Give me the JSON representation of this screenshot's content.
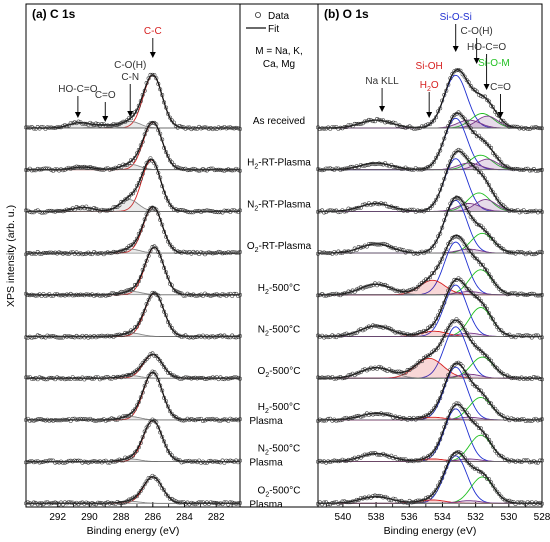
{
  "chart_data": [
    {
      "type": "line",
      "panel_label": "(a) C 1s",
      "xlabel": "Binding energy (eV)",
      "ylabel": "XPS intensity (arb. u.)",
      "xlim": [
        294,
        280.5
      ],
      "x_reversed": true,
      "xticks": [
        292,
        290,
        288,
        286,
        284,
        282
      ],
      "y_ticks_shown": false,
      "stacked_offset_spectra": true,
      "colors": {
        "data": "#333333",
        "fit": "#111111",
        "c_c": "#d62020",
        "minor": "#888888"
      },
      "peak_labels": [
        {
          "text": "C-C",
          "energy": 286.0,
          "color": "#d62020"
        },
        {
          "text": "C-O(H)",
          "energy": 287.3,
          "color": "#333333"
        },
        {
          "text": "C-N",
          "energy": 287.3,
          "color": "#333333"
        },
        {
          "text": "C=O",
          "energy": 289.0,
          "color": "#333333"
        },
        {
          "text": "HO-C=O",
          "energy": 290.6,
          "color": "#333333"
        }
      ],
      "series": [
        {
          "sample": "As received",
          "components": [
            {
              "label": "C-C",
              "center": 286.0,
              "fwhm": 1.4,
              "height": 0.8
            },
            {
              "label": "C-O(H)/C-N",
              "center": 287.4,
              "fwhm": 1.4,
              "height": 0.1
            },
            {
              "label": "C=O",
              "center": 289.0,
              "fwhm": 1.4,
              "height": 0.04
            },
            {
              "label": "HO-C=O",
              "center": 290.6,
              "fwhm": 1.6,
              "height": 0.08
            }
          ]
        },
        {
          "sample": "H2-RT-Plasma",
          "components": [
            {
              "label": "C-C",
              "center": 286.0,
              "fwhm": 1.4,
              "height": 0.72
            },
            {
              "label": "C-O(H)/C-N",
              "center": 287.4,
              "fwhm": 1.4,
              "height": 0.08
            },
            {
              "label": "HO-C=O",
              "center": 290.4,
              "fwhm": 1.6,
              "height": 0.04
            }
          ]
        },
        {
          "sample": "N2-RT-Plasma",
          "components": [
            {
              "label": "C-C",
              "center": 286.1,
              "fwhm": 1.4,
              "height": 0.78
            },
            {
              "label": "C-O(H)/C-N",
              "center": 287.5,
              "fwhm": 1.4,
              "height": 0.18
            },
            {
              "label": "HO-C=O",
              "center": 290.4,
              "fwhm": 1.6,
              "height": 0.06
            }
          ]
        },
        {
          "sample": "O2-RT-Plasma",
          "components": [
            {
              "label": "C-C",
              "center": 286.0,
              "fwhm": 1.4,
              "height": 0.7
            },
            {
              "label": "C-O(H)/C-N",
              "center": 287.4,
              "fwhm": 1.4,
              "height": 0.06
            }
          ]
        },
        {
          "sample": "H2-500°C",
          "components": [
            {
              "label": "C-C",
              "center": 285.9,
              "fwhm": 1.4,
              "height": 0.72
            },
            {
              "label": "C-O(H)/C-N",
              "center": 287.3,
              "fwhm": 1.4,
              "height": 0.05
            }
          ]
        },
        {
          "sample": "N2-500°C",
          "components": [
            {
              "label": "C-C",
              "center": 285.9,
              "fwhm": 1.4,
              "height": 0.66
            },
            {
              "label": "C-O(H)/C-N",
              "center": 287.3,
              "fwhm": 1.4,
              "height": 0.05
            }
          ]
        },
        {
          "sample": "O2-500°C",
          "components": [
            {
              "label": "C-C",
              "center": 286.0,
              "fwhm": 1.4,
              "height": 0.36
            },
            {
              "label": "C-O(H)/C-N",
              "center": 287.4,
              "fwhm": 1.4,
              "height": 0.04
            }
          ]
        },
        {
          "sample": "H2-500°C Plasma",
          "components": [
            {
              "label": "C-C",
              "center": 286.0,
              "fwhm": 1.4,
              "height": 0.72
            },
            {
              "label": "C-O(H)/C-N",
              "center": 287.4,
              "fwhm": 1.4,
              "height": 0.05
            }
          ]
        },
        {
          "sample": "N2-500°C Plasma",
          "components": [
            {
              "label": "C-C",
              "center": 286.0,
              "fwhm": 1.4,
              "height": 0.62
            },
            {
              "label": "C-O(H)/C-N",
              "center": 287.4,
              "fwhm": 1.4,
              "height": 0.04
            }
          ]
        },
        {
          "sample": "O2-500°C Plasma",
          "components": [
            {
              "label": "C-C",
              "center": 286.0,
              "fwhm": 1.4,
              "height": 0.4
            },
            {
              "label": "C-O(H)/C-N",
              "center": 287.4,
              "fwhm": 1.4,
              "height": 0.03
            }
          ]
        }
      ]
    },
    {
      "type": "line",
      "panel_label": "(b) O 1s",
      "xlabel": "Binding energy (eV)",
      "xlim": [
        541.5,
        528
      ],
      "x_reversed": true,
      "xticks": [
        540,
        538,
        536,
        534,
        532,
        530,
        528
      ],
      "y_ticks_shown": false,
      "stacked_offset_spectra": true,
      "colors": {
        "data": "#333333",
        "fit": "#111111",
        "si_o_si": "#1f2fd0",
        "si_oh": "#d62020",
        "o_m": "#22c022",
        "c_o": "#7a3a8a",
        "na_kll": "#333333"
      },
      "peak_labels": [
        {
          "text": "Na KLL",
          "energy": 538.0,
          "color": "#333333"
        },
        {
          "text": "Si-OH",
          "energy": 534.8,
          "color": "#d62020"
        },
        {
          "text": "H2O",
          "energy": 534.8,
          "color": "#d62020"
        },
        {
          "text": "Si-O-Si",
          "energy": 533.2,
          "color": "#1f2fd0"
        },
        {
          "text": "C-O(H)",
          "energy": 532.3,
          "color": "#333333"
        },
        {
          "text": "HO-C=O",
          "energy": 531.7,
          "color": "#333333"
        },
        {
          "text": "Si-O-M",
          "energy": 531.5,
          "color": "#22c022"
        },
        {
          "text": "C=O",
          "energy": 530.5,
          "color": "#333333"
        }
      ],
      "series": [
        {
          "sample": "As received",
          "components": [
            {
              "label": "Si-O-Si",
              "center": 533.2,
              "fwhm": 1.6,
              "height": 0.8
            },
            {
              "label": "Si-O-M",
              "center": 531.6,
              "fwhm": 1.6,
              "height": 0.22
            },
            {
              "label": "C-O(H)",
              "center": 532.4,
              "fwhm": 1.6,
              "height": 0.12
            },
            {
              "label": "HO-C=O",
              "center": 531.3,
              "fwhm": 1.5,
              "height": 0.18
            },
            {
              "label": "Na KLL",
              "center": 538.0,
              "fwhm": 2.2,
              "height": 0.12
            }
          ]
        },
        {
          "sample": "H2-RT-Plasma",
          "components": [
            {
              "label": "Si-O-Si",
              "center": 533.2,
              "fwhm": 1.6,
              "height": 0.78
            },
            {
              "label": "Si-O-M",
              "center": 531.7,
              "fwhm": 1.6,
              "height": 0.22
            },
            {
              "label": "C-O(H)",
              "center": 532.4,
              "fwhm": 1.6,
              "height": 0.1
            },
            {
              "label": "HO-C=O",
              "center": 531.3,
              "fwhm": 1.5,
              "height": 0.16
            },
            {
              "label": "Na KLL",
              "center": 538.0,
              "fwhm": 2.2,
              "height": 0.1
            }
          ]
        },
        {
          "sample": "N2-RT-Plasma",
          "components": [
            {
              "label": "Si-O-Si",
              "center": 533.2,
              "fwhm": 1.6,
              "height": 0.8
            },
            {
              "label": "Si-O-M",
              "center": 531.8,
              "fwhm": 1.6,
              "height": 0.28
            },
            {
              "label": "C-O(H)",
              "center": 532.4,
              "fwhm": 1.6,
              "height": 0.12
            },
            {
              "label": "HO-C=O",
              "center": 531.4,
              "fwhm": 1.5,
              "height": 0.18
            },
            {
              "label": "Na KLL",
              "center": 538.0,
              "fwhm": 2.2,
              "height": 0.12
            }
          ]
        },
        {
          "sample": "O2-RT-Plasma",
          "components": [
            {
              "label": "Si-O-Si",
              "center": 533.2,
              "fwhm": 1.6,
              "height": 0.8
            },
            {
              "label": "Si-O-M",
              "center": 531.6,
              "fwhm": 1.6,
              "height": 0.3
            },
            {
              "label": "C-O(H)",
              "center": 532.4,
              "fwhm": 1.6,
              "height": 0.06
            },
            {
              "label": "Na KLL",
              "center": 538.0,
              "fwhm": 2.2,
              "height": 0.14
            }
          ]
        },
        {
          "sample": "H2-500°C",
          "components": [
            {
              "label": "Si-O-Si",
              "center": 533.2,
              "fwhm": 1.6,
              "height": 0.8
            },
            {
              "label": "Si-O-M",
              "center": 531.7,
              "fwhm": 1.6,
              "height": 0.38
            },
            {
              "label": "Si-OH/H2O",
              "center": 534.6,
              "fwhm": 1.8,
              "height": 0.22
            },
            {
              "label": "C-O(H)",
              "center": 532.4,
              "fwhm": 1.6,
              "height": 0.05
            },
            {
              "label": "Na KLL",
              "center": 538.0,
              "fwhm": 2.2,
              "height": 0.16
            }
          ]
        },
        {
          "sample": "N2-500°C",
          "components": [
            {
              "label": "Si-O-Si",
              "center": 533.2,
              "fwhm": 1.6,
              "height": 0.78
            },
            {
              "label": "Si-O-M",
              "center": 531.7,
              "fwhm": 1.6,
              "height": 0.44
            },
            {
              "label": "Si-OH/H2O",
              "center": 534.5,
              "fwhm": 1.8,
              "height": 0.08
            },
            {
              "label": "C-O(H)",
              "center": 532.4,
              "fwhm": 1.6,
              "height": 0.05
            },
            {
              "label": "Na KLL",
              "center": 538.0,
              "fwhm": 2.2,
              "height": 0.16
            }
          ]
        },
        {
          "sample": "O2-500°C",
          "components": [
            {
              "label": "Si-O-Si",
              "center": 533.2,
              "fwhm": 1.6,
              "height": 0.78
            },
            {
              "label": "Si-O-M",
              "center": 531.6,
              "fwhm": 1.6,
              "height": 0.32
            },
            {
              "label": "Si-OH/H2O",
              "center": 534.8,
              "fwhm": 2.0,
              "height": 0.3
            },
            {
              "label": "C-O(H)",
              "center": 532.4,
              "fwhm": 1.6,
              "height": 0.06
            },
            {
              "label": "Na KLL",
              "center": 538.0,
              "fwhm": 2.2,
              "height": 0.16
            }
          ]
        },
        {
          "sample": "H2-500°C Plasma",
          "components": [
            {
              "label": "Si-O-Si",
              "center": 533.2,
              "fwhm": 1.6,
              "height": 0.8
            },
            {
              "label": "Si-O-M",
              "center": 531.7,
              "fwhm": 1.6,
              "height": 0.34
            },
            {
              "label": "Si-OH/H2O",
              "center": 534.6,
              "fwhm": 1.8,
              "height": 0.04
            },
            {
              "label": "C-O(H)",
              "center": 532.4,
              "fwhm": 1.6,
              "height": 0.04
            },
            {
              "label": "Na KLL",
              "center": 538.0,
              "fwhm": 2.2,
              "height": 0.1
            }
          ]
        },
        {
          "sample": "N2-500°C Plasma",
          "components": [
            {
              "label": "Si-O-Si",
              "center": 533.2,
              "fwhm": 1.6,
              "height": 0.8
            },
            {
              "label": "Si-O-M",
              "center": 531.7,
              "fwhm": 1.6,
              "height": 0.4
            },
            {
              "label": "Si-OH/H2O",
              "center": 534.6,
              "fwhm": 1.8,
              "height": 0.04
            },
            {
              "label": "C-O(H)",
              "center": 532.4,
              "fwhm": 1.6,
              "height": 0.04
            },
            {
              "label": "Na KLL",
              "center": 538.0,
              "fwhm": 2.2,
              "height": 0.12
            }
          ]
        },
        {
          "sample": "O2-500°C Plasma",
          "components": [
            {
              "label": "Si-O-Si",
              "center": 533.2,
              "fwhm": 1.6,
              "height": 0.72
            },
            {
              "label": "Si-O-M",
              "center": 531.6,
              "fwhm": 1.6,
              "height": 0.4
            },
            {
              "label": "Si-OH/H2O",
              "center": 534.6,
              "fwhm": 1.8,
              "height": 0.05
            },
            {
              "label": "C-O(H)",
              "center": 532.4,
              "fwhm": 1.6,
              "height": 0.04
            },
            {
              "label": "Na KLL",
              "center": 538.0,
              "fwhm": 2.2,
              "height": 0.1
            }
          ]
        }
      ]
    }
  ],
  "center_column": {
    "legend": {
      "data_label": "Data",
      "fit_label": "Fit"
    },
    "note_line1": "M = Na, K,",
    "note_line2": "Ca, Mg",
    "samples": [
      {
        "line1": "As received",
        "line2": ""
      },
      {
        "line1": "H",
        "sub": "2",
        "rest": "-RT-Plasma",
        "line2": ""
      },
      {
        "line1": "N",
        "sub": "2",
        "rest": "-RT-Plasma",
        "line2": ""
      },
      {
        "line1": "O",
        "sub": "2",
        "rest": "-RT-Plasma",
        "line2": ""
      },
      {
        "line1": "H",
        "sub": "2",
        "rest": "-500°C",
        "line2": ""
      },
      {
        "line1": "N",
        "sub": "2",
        "rest": "-500°C",
        "line2": ""
      },
      {
        "line1": "O",
        "sub": "2",
        "rest": "-500°C",
        "line2": ""
      },
      {
        "line1": "H",
        "sub": "2",
        "rest": "-500°C",
        "line2": "Plasma"
      },
      {
        "line1": "N",
        "sub": "2",
        "rest": "-500°C",
        "line2": "Plasma"
      },
      {
        "line1": "O",
        "sub": "2",
        "rest": "-500°C",
        "line2": "Plasma"
      }
    ]
  }
}
